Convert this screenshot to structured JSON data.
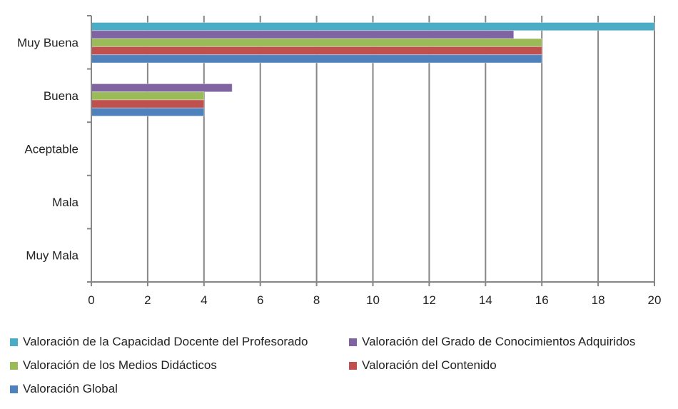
{
  "chart_data": {
    "type": "bar",
    "orientation": "horizontal",
    "title": "",
    "xlabel": "",
    "ylabel": "",
    "categories": [
      "Muy Buena",
      "Buena",
      "Aceptable",
      "Mala",
      "Muy Mala"
    ],
    "series": [
      {
        "name": "Valoración de la Capacidad Docente del Profesorado",
        "color": "#4BACC6",
        "values": [
          20,
          0,
          0,
          0,
          0
        ]
      },
      {
        "name": "Valoración del Grado de Conocimientos Adquiridos",
        "color": "#8064A2",
        "values": [
          15,
          5,
          0,
          0,
          0
        ]
      },
      {
        "name": "Valoración de los Medios Didácticos",
        "color": "#9BBB59",
        "values": [
          16,
          4,
          0,
          0,
          0
        ]
      },
      {
        "name": "Valoración del Contenido",
        "color": "#C0504D",
        "values": [
          16,
          4,
          0,
          0,
          0
        ]
      },
      {
        "name": "Valoración Global",
        "color": "#4F81BD",
        "values": [
          16,
          4,
          0,
          0,
          0
        ]
      }
    ],
    "xlim": [
      0,
      20
    ],
    "xticks": [
      "0",
      "2",
      "4",
      "6",
      "8",
      "10",
      "12",
      "14",
      "16",
      "18",
      "20"
    ],
    "grid": true,
    "legend_position": "bottom"
  }
}
